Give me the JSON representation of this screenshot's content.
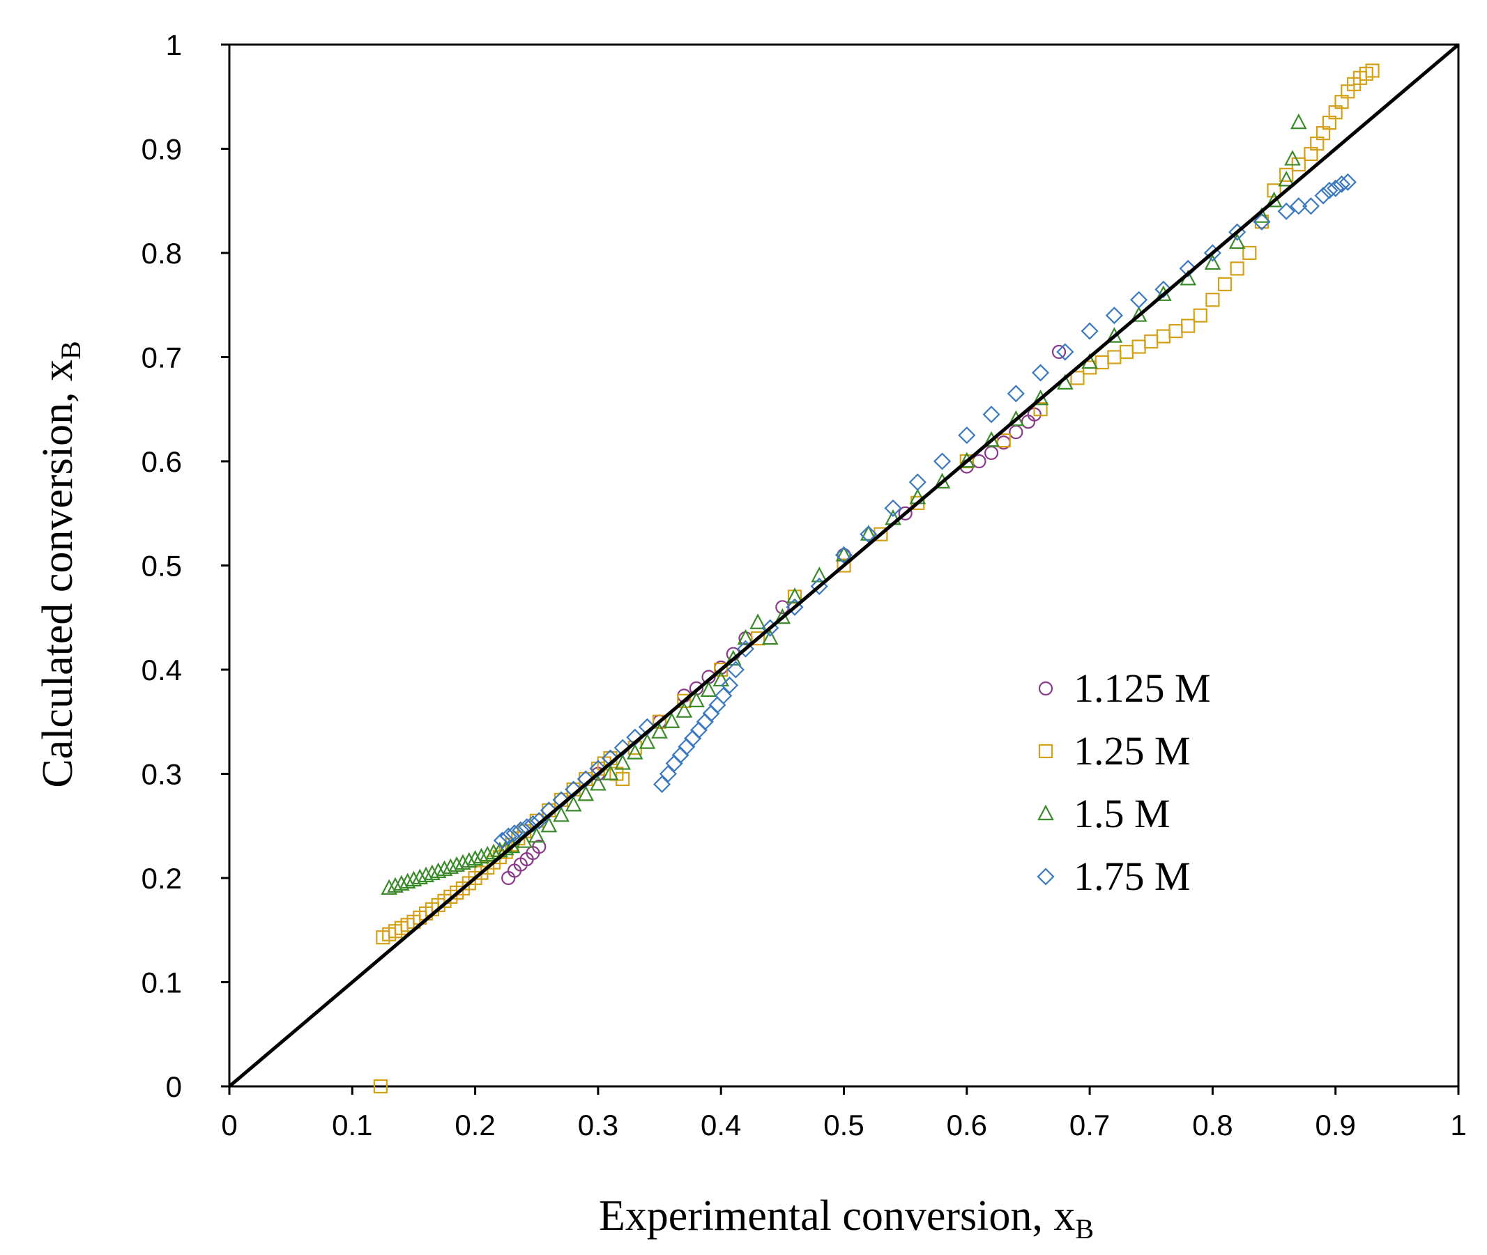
{
  "chart_data": {
    "type": "scatter",
    "xlabel": "Experimental conversion, x",
    "xlabel_sub": "B",
    "ylabel": "Calculated conversion, x",
    "ylabel_sub": "B",
    "xlim": [
      0,
      1
    ],
    "ylim": [
      0,
      1
    ],
    "x_ticks": [
      "0",
      "0.1",
      "0.2",
      "0.3",
      "0.4",
      "0.5",
      "0.6",
      "0.7",
      "0.8",
      "0.9",
      "1"
    ],
    "y_ticks": [
      "0",
      "0.1",
      "0.2",
      "0.3",
      "0.4",
      "0.5",
      "0.6",
      "0.7",
      "0.8",
      "0.9",
      "1"
    ],
    "grid": false,
    "legend_position": "center-right",
    "parity_line": {
      "x": [
        0,
        1
      ],
      "y": [
        0,
        1
      ],
      "color": "#000000"
    },
    "series": [
      {
        "name": "1.125 M",
        "marker": "circle",
        "color": "#8b3a8b",
        "x": [
          0.227,
          0.232,
          0.237,
          0.242,
          0.247,
          0.252,
          0.3,
          0.35,
          0.37,
          0.38,
          0.39,
          0.4,
          0.41,
          0.42,
          0.45,
          0.5,
          0.55,
          0.6,
          0.61,
          0.62,
          0.63,
          0.64,
          0.65,
          0.655,
          0.675
        ],
        "y": [
          0.2,
          0.207,
          0.213,
          0.218,
          0.224,
          0.23,
          0.3,
          0.35,
          0.375,
          0.382,
          0.393,
          0.402,
          0.415,
          0.43,
          0.46,
          0.51,
          0.55,
          0.595,
          0.6,
          0.608,
          0.618,
          0.628,
          0.638,
          0.645,
          0.705
        ]
      },
      {
        "name": "1.25 M",
        "marker": "square",
        "color": "#d4a017",
        "x": [
          0.123,
          0.125,
          0.13,
          0.135,
          0.14,
          0.145,
          0.15,
          0.155,
          0.16,
          0.165,
          0.17,
          0.175,
          0.18,
          0.185,
          0.19,
          0.195,
          0.2,
          0.205,
          0.21,
          0.215,
          0.22,
          0.225,
          0.23,
          0.235,
          0.24,
          0.25,
          0.26,
          0.27,
          0.28,
          0.29,
          0.3,
          0.305,
          0.31,
          0.315,
          0.32,
          0.33,
          0.35,
          0.37,
          0.4,
          0.43,
          0.46,
          0.5,
          0.53,
          0.56,
          0.6,
          0.63,
          0.66,
          0.69,
          0.7,
          0.71,
          0.72,
          0.73,
          0.74,
          0.75,
          0.76,
          0.77,
          0.78,
          0.79,
          0.8,
          0.81,
          0.82,
          0.83,
          0.84,
          0.85,
          0.86,
          0.87,
          0.88,
          0.885,
          0.89,
          0.895,
          0.9,
          0.905,
          0.91,
          0.915,
          0.92,
          0.925,
          0.93
        ],
        "y": [
          0.0,
          0.143,
          0.146,
          0.149,
          0.152,
          0.155,
          0.158,
          0.162,
          0.166,
          0.17,
          0.174,
          0.178,
          0.182,
          0.186,
          0.19,
          0.195,
          0.2,
          0.205,
          0.21,
          0.215,
          0.22,
          0.225,
          0.232,
          0.238,
          0.245,
          0.255,
          0.265,
          0.275,
          0.285,
          0.295,
          0.305,
          0.31,
          0.315,
          0.3,
          0.295,
          0.325,
          0.35,
          0.37,
          0.4,
          0.43,
          0.47,
          0.5,
          0.53,
          0.56,
          0.6,
          0.62,
          0.65,
          0.68,
          0.69,
          0.695,
          0.7,
          0.705,
          0.71,
          0.715,
          0.72,
          0.725,
          0.73,
          0.74,
          0.755,
          0.77,
          0.785,
          0.8,
          0.83,
          0.86,
          0.875,
          0.885,
          0.895,
          0.905,
          0.915,
          0.925,
          0.935,
          0.945,
          0.955,
          0.962,
          0.968,
          0.972,
          0.975
        ]
      },
      {
        "name": "1.5 M",
        "marker": "triangle",
        "color": "#3a8a2a",
        "x": [
          0.13,
          0.135,
          0.14,
          0.145,
          0.15,
          0.155,
          0.16,
          0.165,
          0.17,
          0.175,
          0.18,
          0.185,
          0.19,
          0.195,
          0.2,
          0.205,
          0.21,
          0.215,
          0.22,
          0.225,
          0.23,
          0.24,
          0.25,
          0.26,
          0.27,
          0.28,
          0.29,
          0.3,
          0.31,
          0.32,
          0.33,
          0.34,
          0.35,
          0.36,
          0.37,
          0.38,
          0.39,
          0.4,
          0.41,
          0.42,
          0.43,
          0.44,
          0.45,
          0.46,
          0.48,
          0.5,
          0.52,
          0.54,
          0.56,
          0.58,
          0.6,
          0.62,
          0.64,
          0.66,
          0.68,
          0.7,
          0.72,
          0.74,
          0.76,
          0.78,
          0.8,
          0.82,
          0.84,
          0.85,
          0.86,
          0.865,
          0.87
        ],
        "y": [
          0.19,
          0.192,
          0.194,
          0.196,
          0.198,
          0.2,
          0.202,
          0.204,
          0.206,
          0.208,
          0.21,
          0.212,
          0.214,
          0.216,
          0.218,
          0.22,
          0.222,
          0.224,
          0.226,
          0.228,
          0.23,
          0.235,
          0.24,
          0.25,
          0.26,
          0.27,
          0.28,
          0.29,
          0.3,
          0.31,
          0.32,
          0.33,
          0.34,
          0.35,
          0.36,
          0.37,
          0.38,
          0.39,
          0.41,
          0.43,
          0.445,
          0.43,
          0.45,
          0.47,
          0.49,
          0.51,
          0.53,
          0.545,
          0.565,
          0.58,
          0.6,
          0.62,
          0.64,
          0.66,
          0.675,
          0.695,
          0.72,
          0.74,
          0.76,
          0.775,
          0.79,
          0.81,
          0.835,
          0.85,
          0.87,
          0.89,
          0.925
        ]
      },
      {
        "name": "1.75 M",
        "marker": "diamond",
        "color": "#3a78c0",
        "x": [
          0.222,
          0.227,
          0.232,
          0.237,
          0.242,
          0.247,
          0.252,
          0.26,
          0.27,
          0.28,
          0.29,
          0.3,
          0.31,
          0.32,
          0.33,
          0.34,
          0.352,
          0.357,
          0.362,
          0.367,
          0.372,
          0.377,
          0.382,
          0.387,
          0.392,
          0.397,
          0.402,
          0.407,
          0.412,
          0.42,
          0.44,
          0.46,
          0.48,
          0.5,
          0.52,
          0.54,
          0.56,
          0.58,
          0.6,
          0.62,
          0.64,
          0.66,
          0.68,
          0.7,
          0.72,
          0.74,
          0.76,
          0.78,
          0.8,
          0.82,
          0.84,
          0.86,
          0.87,
          0.88,
          0.89,
          0.895,
          0.9,
          0.905,
          0.91
        ],
        "y": [
          0.236,
          0.24,
          0.243,
          0.246,
          0.249,
          0.252,
          0.255,
          0.265,
          0.275,
          0.285,
          0.295,
          0.305,
          0.315,
          0.325,
          0.335,
          0.345,
          0.29,
          0.3,
          0.31,
          0.318,
          0.326,
          0.334,
          0.342,
          0.35,
          0.358,
          0.366,
          0.375,
          0.385,
          0.4,
          0.42,
          0.44,
          0.46,
          0.48,
          0.51,
          0.53,
          0.555,
          0.58,
          0.6,
          0.625,
          0.645,
          0.665,
          0.685,
          0.705,
          0.725,
          0.74,
          0.755,
          0.765,
          0.785,
          0.8,
          0.82,
          0.83,
          0.84,
          0.845,
          0.845,
          0.855,
          0.86,
          0.862,
          0.866,
          0.868
        ]
      }
    ]
  }
}
